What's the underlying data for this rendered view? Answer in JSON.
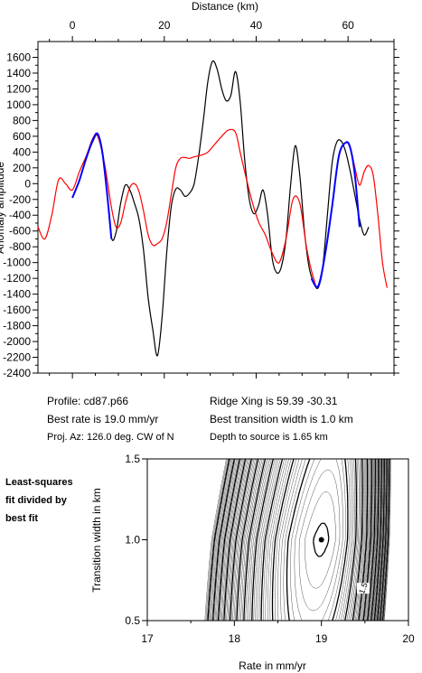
{
  "info": {
    "profile": "Profile: cd87.p66",
    "best_rate": "Best rate is 19.0 mm/yr",
    "proj_az": "Proj. Az: 126.0 deg. CW of N",
    "ridge_xing": "Ridge Xing is 59.39 -30.31",
    "best_width": "Best transition width is 1.0 km",
    "depth": "Depth to source is   1.65 km"
  },
  "side_note": [
    "Least-squares",
    "fit divided by",
    "best fit"
  ],
  "chart_data": [
    {
      "type": "line",
      "xlabel": "Distance (km)",
      "ylabel": "Anomaly amplitude",
      "xlim": [
        -7.5,
        70
      ],
      "ylim": [
        -2400,
        1800
      ],
      "x_ticks": [
        0,
        20,
        40,
        60
      ],
      "y_ticks": [
        1600,
        1400,
        1200,
        1000,
        800,
        600,
        400,
        200,
        0,
        -200,
        -400,
        -600,
        -800,
        -1000,
        -1200,
        -1400,
        -1600,
        -1800,
        -2000,
        -2200,
        -2400
      ],
      "series": [
        {
          "color": "#000000",
          "x": [
            0,
            1.5,
            3,
            4.5,
            5.5,
            6.5,
            7.5,
            8.5,
            9.5,
            10.5,
            11.5,
            12.5,
            13.5,
            14.5,
            15.5,
            16.5,
            17.5,
            18.5,
            19.5,
            20.5,
            21.5,
            22.5,
            23.5,
            24.5,
            25.5,
            26.5,
            27.5,
            28.5,
            29.5,
            30.5,
            31.5,
            32.5,
            33.5,
            34.5,
            35.5,
            36.5,
            37.5,
            38.5,
            39.5,
            40.5,
            41.5,
            42.5,
            43.5,
            44.5,
            45.5,
            46.5,
            47.5,
            48.5,
            49.5,
            50.5,
            51.5,
            52.5,
            53.5,
            54.5,
            55.5,
            56.5,
            57.5,
            58.5,
            59.5,
            60.5,
            61.5,
            62.5,
            63.5,
            64.5
          ],
          "y": [
            -180,
            40,
            320,
            540,
            620,
            420,
            -80,
            -680,
            -620,
            -250,
            -20,
            -80,
            -250,
            -450,
            -850,
            -1450,
            -1850,
            -2180,
            -1700,
            -900,
            -300,
            -70,
            -80,
            -160,
            -120,
            0,
            350,
            800,
            1300,
            1550,
            1450,
            1200,
            1050,
            1120,
            1420,
            1050,
            300,
            -200,
            -380,
            -280,
            -80,
            -400,
            -950,
            -1130,
            -1050,
            -700,
            -20,
            480,
            100,
            -600,
            -1050,
            -1250,
            -1320,
            -1050,
            -400,
            250,
            520,
            540,
            400,
            150,
            -150,
            -450,
            -650,
            -550
          ]
        },
        {
          "color": "#ff0000",
          "x": [
            -7.5,
            -6,
            -4.5,
            -3,
            -1.5,
            0,
            1.5,
            3,
            4.5,
            5.5,
            7,
            8.5,
            9.5,
            10.5,
            11.5,
            12.5,
            13.5,
            14.5,
            15.5,
            16.5,
            17.5,
            18.5,
            19.5,
            20.5,
            21.5,
            22.5,
            23.5,
            24.5,
            25.5,
            26.5,
            28,
            29.5,
            31,
            32.5,
            34,
            35.5,
            36.5,
            37.5,
            39,
            40.5,
            42,
            43.5,
            45,
            46.5,
            48,
            49.5,
            51,
            52.5,
            53.5,
            55,
            56.5,
            58,
            59.5,
            60.5,
            61.5,
            62.5,
            63.5,
            64.5,
            65.5,
            66.5,
            67.5,
            68.5
          ],
          "y": [
            -550,
            -700,
            -400,
            50,
            0,
            -80,
            150,
            350,
            580,
            600,
            250,
            -300,
            -550,
            -500,
            -250,
            -50,
            0,
            -100,
            -350,
            -650,
            -780,
            -760,
            -700,
            -500,
            -150,
            200,
            320,
            330,
            320,
            340,
            360,
            400,
            500,
            600,
            680,
            650,
            400,
            150,
            -200,
            -480,
            -650,
            -880,
            -1000,
            -700,
            -200,
            -250,
            -820,
            -1200,
            -1300,
            -900,
            -300,
            350,
            520,
            450,
            200,
            -20,
            150,
            230,
            100,
            -400,
            -1000,
            -1320
          ]
        },
        {
          "color": "#0000ff",
          "x": [
            0,
            1.5,
            3,
            4.5,
            5.5,
            6.5,
            7.5,
            8.5
          ],
          "y": [
            -180,
            40,
            320,
            560,
            630,
            400,
            -100,
            -700
          ]
        },
        {
          "color": "#0000ff",
          "x": [
            52,
            53.5,
            55,
            56.5,
            58,
            59.5,
            60.5,
            61.5,
            62.5
          ],
          "y": [
            -1200,
            -1300,
            -900,
            -300,
            350,
            520,
            450,
            100,
            -550
          ]
        }
      ]
    },
    {
      "type": "contour",
      "xlabel": "Rate in mm/yr",
      "ylabel": "Transition width in km",
      "xlim": [
        17,
        20
      ],
      "ylim": [
        0.5,
        1.5
      ],
      "x_ticks": [
        17,
        18,
        19,
        20
      ],
      "y_ticks": [
        0.5,
        1.0,
        1.5
      ],
      "best_fit": {
        "x": 19.0,
        "y": 1.0
      },
      "contour_label": "1.5"
    }
  ]
}
